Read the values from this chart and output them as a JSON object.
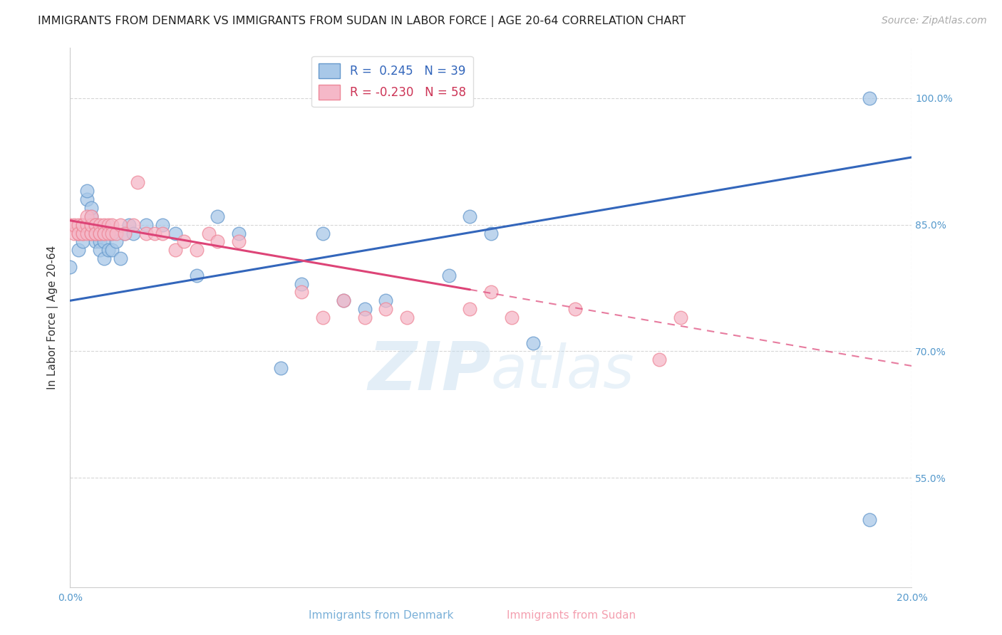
{
  "title": "IMMIGRANTS FROM DENMARK VS IMMIGRANTS FROM SUDAN IN LABOR FORCE | AGE 20-64 CORRELATION CHART",
  "source_text": "Source: ZipAtlas.com",
  "ylabel": "In Labor Force | Age 20-64",
  "ytick_labels": [
    "55.0%",
    "70.0%",
    "85.0%",
    "100.0%"
  ],
  "ytick_values": [
    0.55,
    0.7,
    0.85,
    1.0
  ],
  "xlim": [
    0.0,
    0.2
  ],
  "ylim": [
    0.42,
    1.06
  ],
  "watermark": "ZIPatlas",
  "denmark_color": "#a8c8e8",
  "sudan_color": "#f5b8c8",
  "denmark_edge": "#6699cc",
  "sudan_edge": "#ee8899",
  "trendline_denmark_color": "#3366bb",
  "trendline_sudan_color": "#dd4477",
  "background_color": "#ffffff",
  "grid_color": "#cccccc",
  "title_fontsize": 11.5,
  "axis_label_fontsize": 11,
  "tick_fontsize": 10,
  "source_fontsize": 10,
  "dk_x": [
    0.0,
    0.002,
    0.003,
    0.004,
    0.004,
    0.005,
    0.005,
    0.006,
    0.006,
    0.007,
    0.007,
    0.008,
    0.008,
    0.009,
    0.01,
    0.01,
    0.011,
    0.012,
    0.013,
    0.014,
    0.015,
    0.018,
    0.022,
    0.025,
    0.03,
    0.035,
    0.04,
    0.055,
    0.06,
    0.065,
    0.07,
    0.075,
    0.09,
    0.095,
    0.1,
    0.11,
    0.19,
    0.19,
    0.05
  ],
  "dk_y": [
    0.8,
    0.82,
    0.83,
    0.88,
    0.89,
    0.86,
    0.87,
    0.84,
    0.83,
    0.83,
    0.82,
    0.83,
    0.81,
    0.82,
    0.82,
    0.84,
    0.83,
    0.81,
    0.84,
    0.85,
    0.84,
    0.85,
    0.85,
    0.84,
    0.79,
    0.86,
    0.84,
    0.78,
    0.84,
    0.76,
    0.75,
    0.76,
    0.79,
    0.86,
    0.84,
    0.71,
    1.0,
    0.5,
    0.68
  ],
  "sd_x": [
    0.0,
    0.001,
    0.001,
    0.002,
    0.002,
    0.002,
    0.003,
    0.003,
    0.003,
    0.003,
    0.004,
    0.004,
    0.004,
    0.005,
    0.005,
    0.005,
    0.005,
    0.005,
    0.006,
    0.006,
    0.006,
    0.006,
    0.007,
    0.007,
    0.007,
    0.008,
    0.008,
    0.008,
    0.009,
    0.009,
    0.01,
    0.01,
    0.011,
    0.012,
    0.013,
    0.015,
    0.016,
    0.018,
    0.02,
    0.022,
    0.025,
    0.027,
    0.03,
    0.033,
    0.035,
    0.04,
    0.055,
    0.06,
    0.065,
    0.07,
    0.075,
    0.08,
    0.095,
    0.1,
    0.105,
    0.12,
    0.14,
    0.145
  ],
  "sd_y": [
    0.85,
    0.84,
    0.85,
    0.84,
    0.85,
    0.84,
    0.84,
    0.85,
    0.84,
    0.85,
    0.85,
    0.86,
    0.84,
    0.85,
    0.84,
    0.84,
    0.85,
    0.86,
    0.85,
    0.84,
    0.85,
    0.84,
    0.84,
    0.85,
    0.84,
    0.85,
    0.84,
    0.84,
    0.85,
    0.84,
    0.85,
    0.84,
    0.84,
    0.85,
    0.84,
    0.85,
    0.9,
    0.84,
    0.84,
    0.84,
    0.82,
    0.83,
    0.82,
    0.84,
    0.83,
    0.83,
    0.77,
    0.74,
    0.76,
    0.74,
    0.75,
    0.74,
    0.75,
    0.77,
    0.74,
    0.75,
    0.69,
    0.74
  ]
}
